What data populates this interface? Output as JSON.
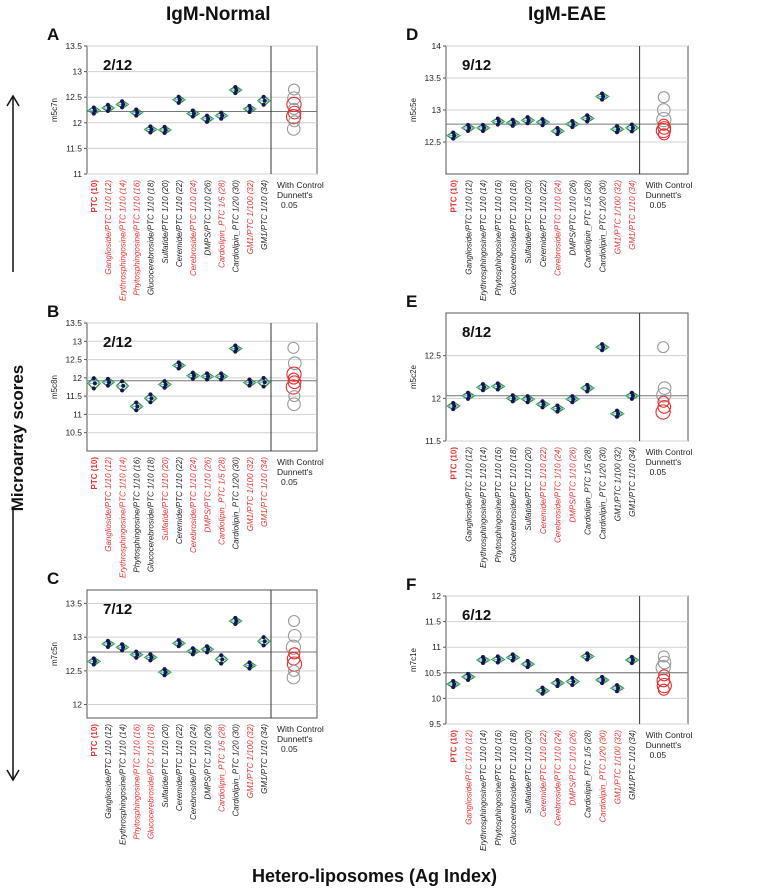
{
  "figure": {
    "col_titles": [
      "IgM-Normal",
      "IgM-EAE"
    ],
    "y_title": "Microarray scores",
    "x_title": "Hetero-liposomes (Ag Index)",
    "control_text": [
      "With Control",
      "Dunnett's",
      "0.05"
    ]
  },
  "categories": [
    "PTC (10)",
    "Ganglioside/PTC 1/10 (12)",
    "Erythrosphingosine/PTC 1/10 (14)",
    "Phytosphingosine/PTC 1/10 (16)",
    "Glucocerebroside/PTC 1/10 (18)",
    "Sulfatide/PTC 1/10 (20)",
    "Ceremide/PTC 1/10 (22)",
    "Cerebroside/PTC 1/10 (24)",
    "DMPS/PTC 1/10 (26)",
    "Cardiolipin_PTC 1/5 (28)",
    "Cardiolipin_PTC 1/20 (30)",
    "GM1/PTC 1/100 (32)",
    "GM1/PTC 1/10 (34)"
  ],
  "colors": {
    "sig": "#e8302e",
    "ns": "#222222",
    "diamond": "#2f8f2f",
    "center": "#6ec6e0",
    "point": "#14145a",
    "circle_sig": "#e8302e",
    "circle_ns": "#999999"
  },
  "chart_data": [
    {
      "letter": "A",
      "title": "2/12",
      "ylabel": "m5c7n",
      "type": "scatter",
      "ylim": [
        11,
        13.5
      ],
      "yticks": [
        11,
        11.5,
        12,
        12.5,
        13,
        13.5
      ],
      "tick_labels": [
        "11",
        "11.5",
        "12",
        "12.5",
        "13",
        "13.5"
      ],
      "grand_mean": 12.22,
      "means": [
        12.24,
        12.29,
        12.36,
        12.2,
        11.87,
        11.86,
        12.45,
        12.18,
        12.08,
        12.14,
        12.64,
        12.27,
        12.43
      ],
      "spread": [
        0.05,
        0.06,
        0.06,
        0.05,
        0.06,
        0.07,
        0.03,
        0.07,
        0.08,
        0.05,
        0.04,
        0.06,
        0.1
      ],
      "label_color": [
        "sig",
        "sig",
        "sig",
        "sig",
        "ns",
        "ns",
        "ns",
        "sig",
        "ns",
        "sig",
        "ns",
        "sig",
        "ns"
      ],
      "circles": [
        {
          "value": 12.65,
          "color": "circle_ns"
        },
        {
          "value": 12.48,
          "color": "circle_ns"
        },
        {
          "value": 12.36,
          "color": "circle_sig"
        },
        {
          "value": 12.27,
          "color": "circle_ns"
        },
        {
          "value": 12.2,
          "color": "circle_sig"
        },
        {
          "value": 12.12,
          "color": "circle_sig"
        },
        {
          "value": 12.03,
          "color": "circle_ns"
        },
        {
          "value": 11.88,
          "color": "circle_ns"
        }
      ]
    },
    {
      "letter": "B",
      "title": "2/12",
      "ylabel": "m5c8n",
      "type": "scatter",
      "ylim": [
        10,
        13.5
      ],
      "yticks": [
        10.5,
        11,
        11.5,
        12,
        12.5,
        13,
        13.5
      ],
      "tick_labels": [
        "10.5",
        "11",
        "11.5",
        "12",
        "12.5",
        "13",
        "13.5"
      ],
      "grand_mean": 11.92,
      "means": [
        11.85,
        11.88,
        11.78,
        11.22,
        11.44,
        11.82,
        12.34,
        12.06,
        12.04,
        12.04,
        12.8,
        11.87,
        11.88
      ],
      "spread": [
        0.18,
        0.12,
        0.16,
        0.14,
        0.14,
        0.12,
        0.06,
        0.1,
        0.1,
        0.08,
        0.05,
        0.1,
        0.15
      ],
      "label_color": [
        "sig",
        "sig",
        "sig",
        "ns",
        "ns",
        "sig",
        "ns",
        "sig",
        "sig",
        "sig",
        "ns",
        "sig",
        "sig"
      ],
      "circles": [
        {
          "value": 12.82,
          "color": "circle_ns"
        },
        {
          "value": 12.4,
          "color": "circle_ns"
        },
        {
          "value": 12.1,
          "color": "circle_sig"
        },
        {
          "value": 11.98,
          "color": "circle_sig"
        },
        {
          "value": 11.88,
          "color": "circle_sig"
        },
        {
          "value": 11.75,
          "color": "circle_sig"
        },
        {
          "value": 11.5,
          "color": "circle_ns"
        },
        {
          "value": 11.28,
          "color": "circle_ns"
        }
      ]
    },
    {
      "letter": "C",
      "title": "7/12",
      "ylabel": "m7c5n",
      "type": "scatter",
      "ylim": [
        11.8,
        13.7
      ],
      "yticks": [
        12,
        12.5,
        13,
        13.5
      ],
      "tick_labels": [
        "12",
        "12.5",
        "13",
        "13.5"
      ],
      "grand_mean": 12.78,
      "means": [
        12.64,
        12.9,
        12.85,
        12.74,
        12.7,
        12.48,
        12.91,
        12.79,
        12.82,
        12.67,
        13.24,
        12.58,
        12.94
      ],
      "spread": [
        0.04,
        0.04,
        0.05,
        0.04,
        0.04,
        0.04,
        0.05,
        0.04,
        0.04,
        0.08,
        0.03,
        0.04,
        0.08
      ],
      "label_color": [
        "sig",
        "ns",
        "ns",
        "sig",
        "sig",
        "ns",
        "ns",
        "ns",
        "ns",
        "sig",
        "ns",
        "sig",
        "ns"
      ],
      "circles": [
        {
          "value": 13.24,
          "color": "circle_ns"
        },
        {
          "value": 13.02,
          "color": "circle_ns"
        },
        {
          "value": 12.85,
          "color": "circle_ns"
        },
        {
          "value": 12.76,
          "color": "circle_sig"
        },
        {
          "value": 12.68,
          "color": "circle_sig"
        },
        {
          "value": 12.6,
          "color": "circle_sig"
        },
        {
          "value": 12.5,
          "color": "circle_ns"
        },
        {
          "value": 12.4,
          "color": "circle_ns"
        }
      ]
    },
    {
      "letter": "D",
      "title": "9/12",
      "ylabel": "m5c5e",
      "type": "scatter",
      "ylim": [
        12,
        14
      ],
      "yticks": [
        12.5,
        13,
        13.5,
        14
      ],
      "tick_labels": [
        "12.5",
        "13",
        "13.5",
        "14"
      ],
      "grand_mean": 12.78,
      "means": [
        12.6,
        12.72,
        12.72,
        12.82,
        12.8,
        12.84,
        12.81,
        12.67,
        12.78,
        12.87,
        13.21,
        12.7,
        12.72
      ],
      "spread": [
        0.05,
        0.03,
        0.05,
        0.03,
        0.05,
        0.05,
        0.04,
        0.03,
        0.04,
        0.03,
        0.03,
        0.03,
        0.07
      ],
      "label_color": [
        "sig",
        "ns",
        "ns",
        "ns",
        "ns",
        "ns",
        "ns",
        "sig",
        "ns",
        "ns",
        "ns",
        "sig",
        "sig"
      ],
      "circles": [
        {
          "value": 13.2,
          "color": "circle_ns"
        },
        {
          "value": 13.0,
          "color": "circle_ns"
        },
        {
          "value": 12.85,
          "color": "circle_ns"
        },
        {
          "value": 12.77,
          "color": "circle_sig"
        },
        {
          "value": 12.72,
          "color": "circle_sig"
        },
        {
          "value": 12.68,
          "color": "circle_sig"
        },
        {
          "value": 12.62,
          "color": "circle_sig"
        }
      ]
    },
    {
      "letter": "E",
      "title": "8/12",
      "ylabel": "m5c2e",
      "type": "scatter",
      "ylim": [
        11.5,
        13
      ],
      "yticks": [
        11.5,
        12,
        12.5
      ],
      "tick_labels": [
        "11.5",
        "12",
        "12.5"
      ],
      "grand_mean": 12.03,
      "means": [
        11.91,
        12.03,
        12.13,
        12.14,
        12.0,
        11.99,
        11.93,
        11.88,
        11.99,
        12.12,
        12.6,
        11.82,
        12.03
      ],
      "spread": [
        0.03,
        0.02,
        0.03,
        0.02,
        0.02,
        0.02,
        0.02,
        0.02,
        0.02,
        0.05,
        0.01,
        0.03,
        0.04
      ],
      "label_color": [
        "sig",
        "ns",
        "ns",
        "ns",
        "ns",
        "ns",
        "sig",
        "sig",
        "sig",
        "ns",
        "ns",
        "ns",
        "ns"
      ],
      "circles": [
        {
          "value": 12.6,
          "color": "circle_ns"
        },
        {
          "value": 12.12,
          "color": "circle_ns"
        },
        {
          "value": 12.04,
          "color": "circle_ns"
        },
        {
          "value": 11.96,
          "color": "circle_sig"
        },
        {
          "value": 11.9,
          "color": "circle_sig"
        },
        {
          "value": 11.84,
          "color": "circle_sig"
        }
      ]
    },
    {
      "letter": "F",
      "title": "6/12",
      "ylabel": "m7c1e",
      "type": "scatter",
      "ylim": [
        9.5,
        12
      ],
      "yticks": [
        9.5,
        10,
        10.5,
        11,
        11.5,
        12
      ],
      "tick_labels": [
        "9.5",
        "10",
        "10.5",
        "11",
        "11.5",
        "12"
      ],
      "grand_mean": 10.5,
      "means": [
        10.28,
        10.42,
        10.75,
        10.76,
        10.8,
        10.67,
        10.15,
        10.3,
        10.33,
        10.82,
        10.36,
        10.2,
        10.75
      ],
      "spread": [
        0.05,
        0.05,
        0.07,
        0.06,
        0.05,
        0.05,
        0.07,
        0.06,
        0.09,
        0.05,
        0.08,
        0.05,
        0.08
      ],
      "label_color": [
        "sig",
        "sig",
        "ns",
        "ns",
        "ns",
        "ns",
        "sig",
        "sig",
        "sig",
        "ns",
        "sig",
        "sig",
        "ns"
      ],
      "circles": [
        {
          "value": 10.82,
          "color": "circle_ns"
        },
        {
          "value": 10.7,
          "color": "circle_ns"
        },
        {
          "value": 10.6,
          "color": "circle_ns"
        },
        {
          "value": 10.45,
          "color": "circle_sig"
        },
        {
          "value": 10.35,
          "color": "circle_sig"
        },
        {
          "value": 10.25,
          "color": "circle_sig"
        },
        {
          "value": 10.17,
          "color": "circle_sig"
        }
      ]
    }
  ]
}
